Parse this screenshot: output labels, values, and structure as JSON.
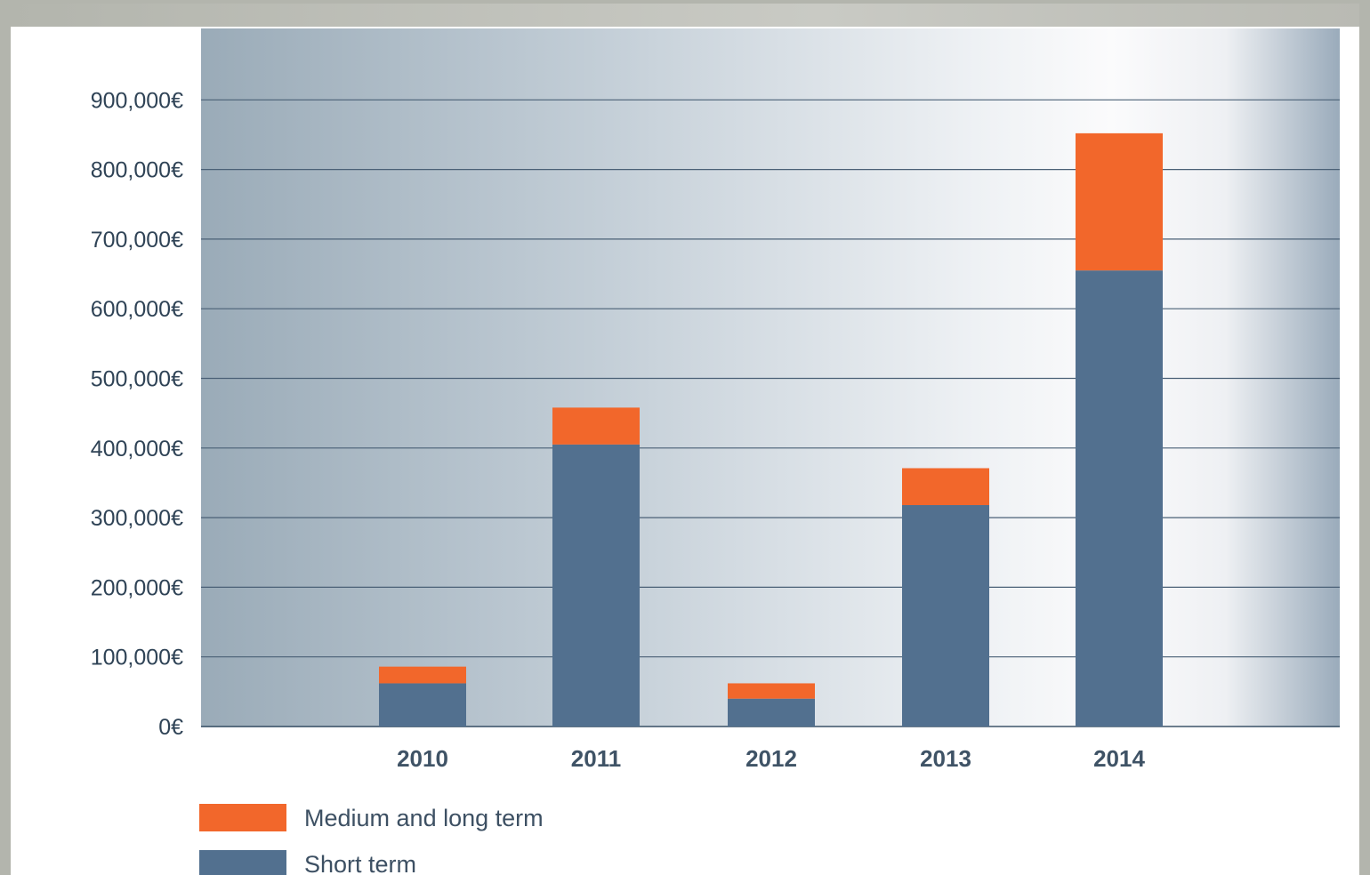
{
  "chart_data": {
    "type": "bar",
    "stacked": true,
    "categories": [
      "2010",
      "2011",
      "2012",
      "2013",
      "2014"
    ],
    "series": [
      {
        "name": "Short term",
        "values": [
          62000,
          405000,
          40000,
          318000,
          655000
        ]
      },
      {
        "name": "Medium and long term",
        "values": [
          24000,
          53000,
          22000,
          53000,
          197000
        ]
      }
    ],
    "y_ticks": [
      0,
      100000,
      200000,
      300000,
      400000,
      500000,
      600000,
      700000,
      800000,
      900000
    ],
    "y_tick_labels": [
      "0€",
      "100,000€",
      "200,000€",
      "300,000€",
      "400,000€",
      "500,000€",
      "600,000€",
      "700,000€",
      "800,000€",
      "900,000€"
    ],
    "ylim": [
      0,
      1000000
    ],
    "grid": true,
    "legend_position": "bottom-left",
    "colors": {
      "Short term": "#52708f",
      "Medium and long term": "#f2672b"
    }
  }
}
